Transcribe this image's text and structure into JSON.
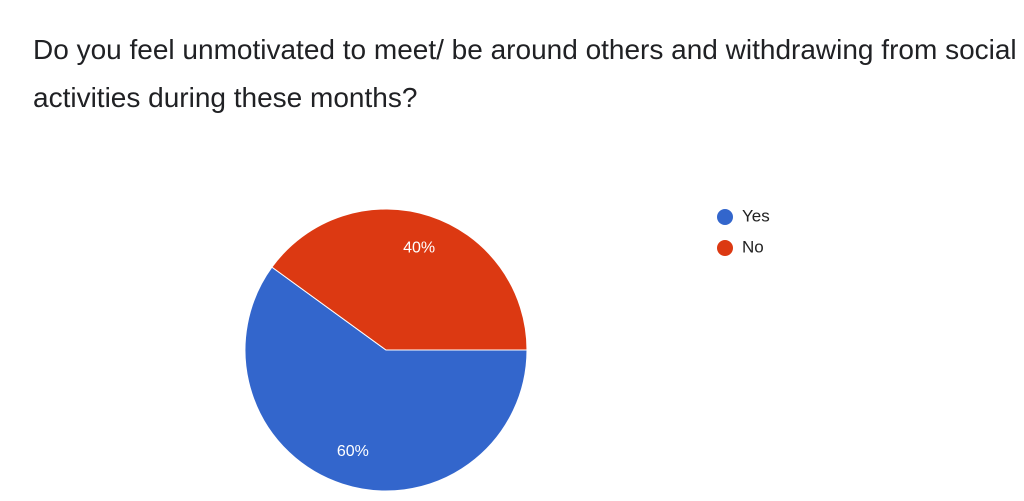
{
  "chart_data": {
    "type": "pie",
    "title": "Do you feel unmotivated to meet/ be around others and withdrawing from social activities during these months?",
    "categories": [
      "Yes",
      "No"
    ],
    "values": [
      60,
      40
    ],
    "value_labels": [
      "60%",
      "40%"
    ],
    "colors": [
      "#3366cc",
      "#dc3912"
    ],
    "legend": "right"
  }
}
